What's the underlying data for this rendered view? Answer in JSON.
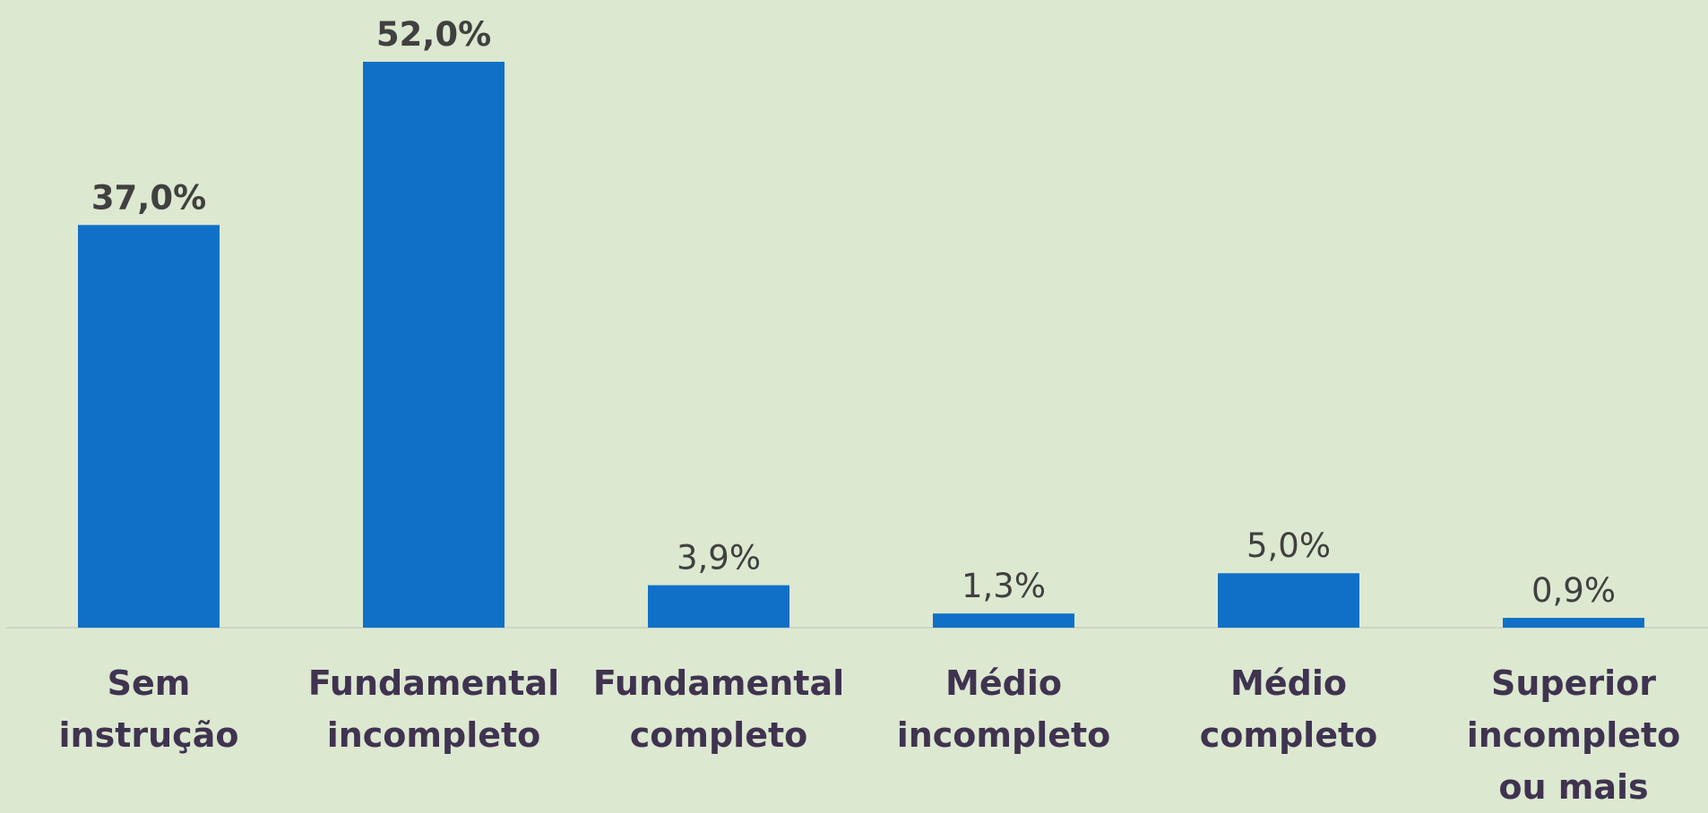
{
  "chart_data": {
    "type": "bar",
    "categories": [
      "Sem instrução",
      "Fundamental incompleto",
      "Fundamental completo",
      "Médio incompleto",
      "Médio completo",
      "Superior incompleto ou mais"
    ],
    "values": [
      37.0,
      52.0,
      3.9,
      1.3,
      5.0,
      0.9
    ],
    "value_labels": [
      "37,0%",
      "52,0%",
      "3,9%",
      "1,3%",
      "5,0%",
      "0,9%"
    ],
    "value_label_weights": [
      "bold",
      "bold",
      "normal",
      "normal",
      "normal",
      "normal"
    ],
    "color": "#1070c8"
  }
}
